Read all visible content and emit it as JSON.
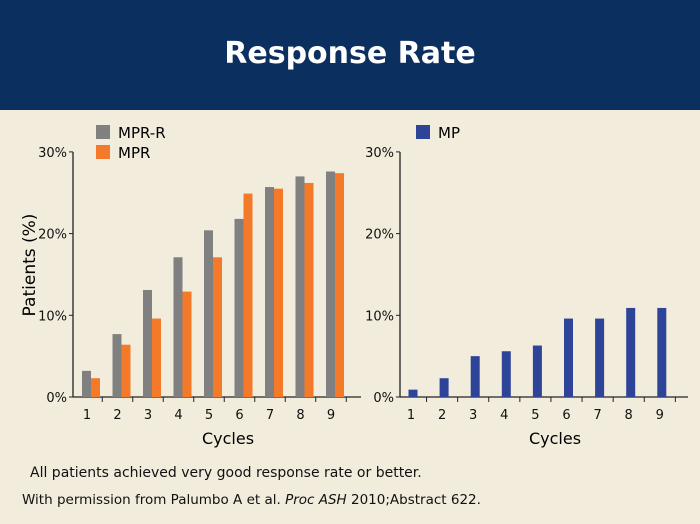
{
  "header": {
    "title": "Response Rate"
  },
  "chart_data": [
    {
      "type": "bar",
      "categories": [
        "1",
        "2",
        "3",
        "4",
        "5",
        "6",
        "7",
        "8",
        "9"
      ],
      "series": [
        {
          "name": "MPR-R",
          "color": "#808080",
          "values": [
            3.2,
            7.7,
            13.1,
            17.1,
            20.4,
            21.8,
            25.7,
            27.0,
            27.6
          ]
        },
        {
          "name": "MPR",
          "color": "#f47a2a",
          "values": [
            2.3,
            6.4,
            9.6,
            12.9,
            17.1,
            24.9,
            25.5,
            26.2,
            27.4
          ]
        }
      ],
      "xlabel": "Cycles",
      "ylabel": "Patients (%)",
      "ylim": [
        0,
        30
      ],
      "yticks": [
        "0%",
        "10%",
        "20%",
        "30%"
      ],
      "legend": "top-left"
    },
    {
      "type": "bar",
      "categories": [
        "1",
        "2",
        "3",
        "4",
        "5",
        "6",
        "7",
        "8",
        "9"
      ],
      "series": [
        {
          "name": "MP",
          "color": "#2e4499",
          "values": [
            0.9,
            2.3,
            5.0,
            5.6,
            6.3,
            9.6,
            9.6,
            10.9,
            10.9
          ]
        }
      ],
      "xlabel": "Cycles",
      "ylabel": "",
      "ylim": [
        0,
        30
      ],
      "yticks": [
        "0%",
        "10%",
        "20%",
        "30%"
      ],
      "legend": "top-left"
    }
  ],
  "notes": {
    "line1": "All patients achieved very good response rate or better.",
    "line2_pre": "With permission from Palumbo A et al. ",
    "line2_italic": "Proc ASH",
    "line2_post": " 2010;Abstract 622."
  }
}
